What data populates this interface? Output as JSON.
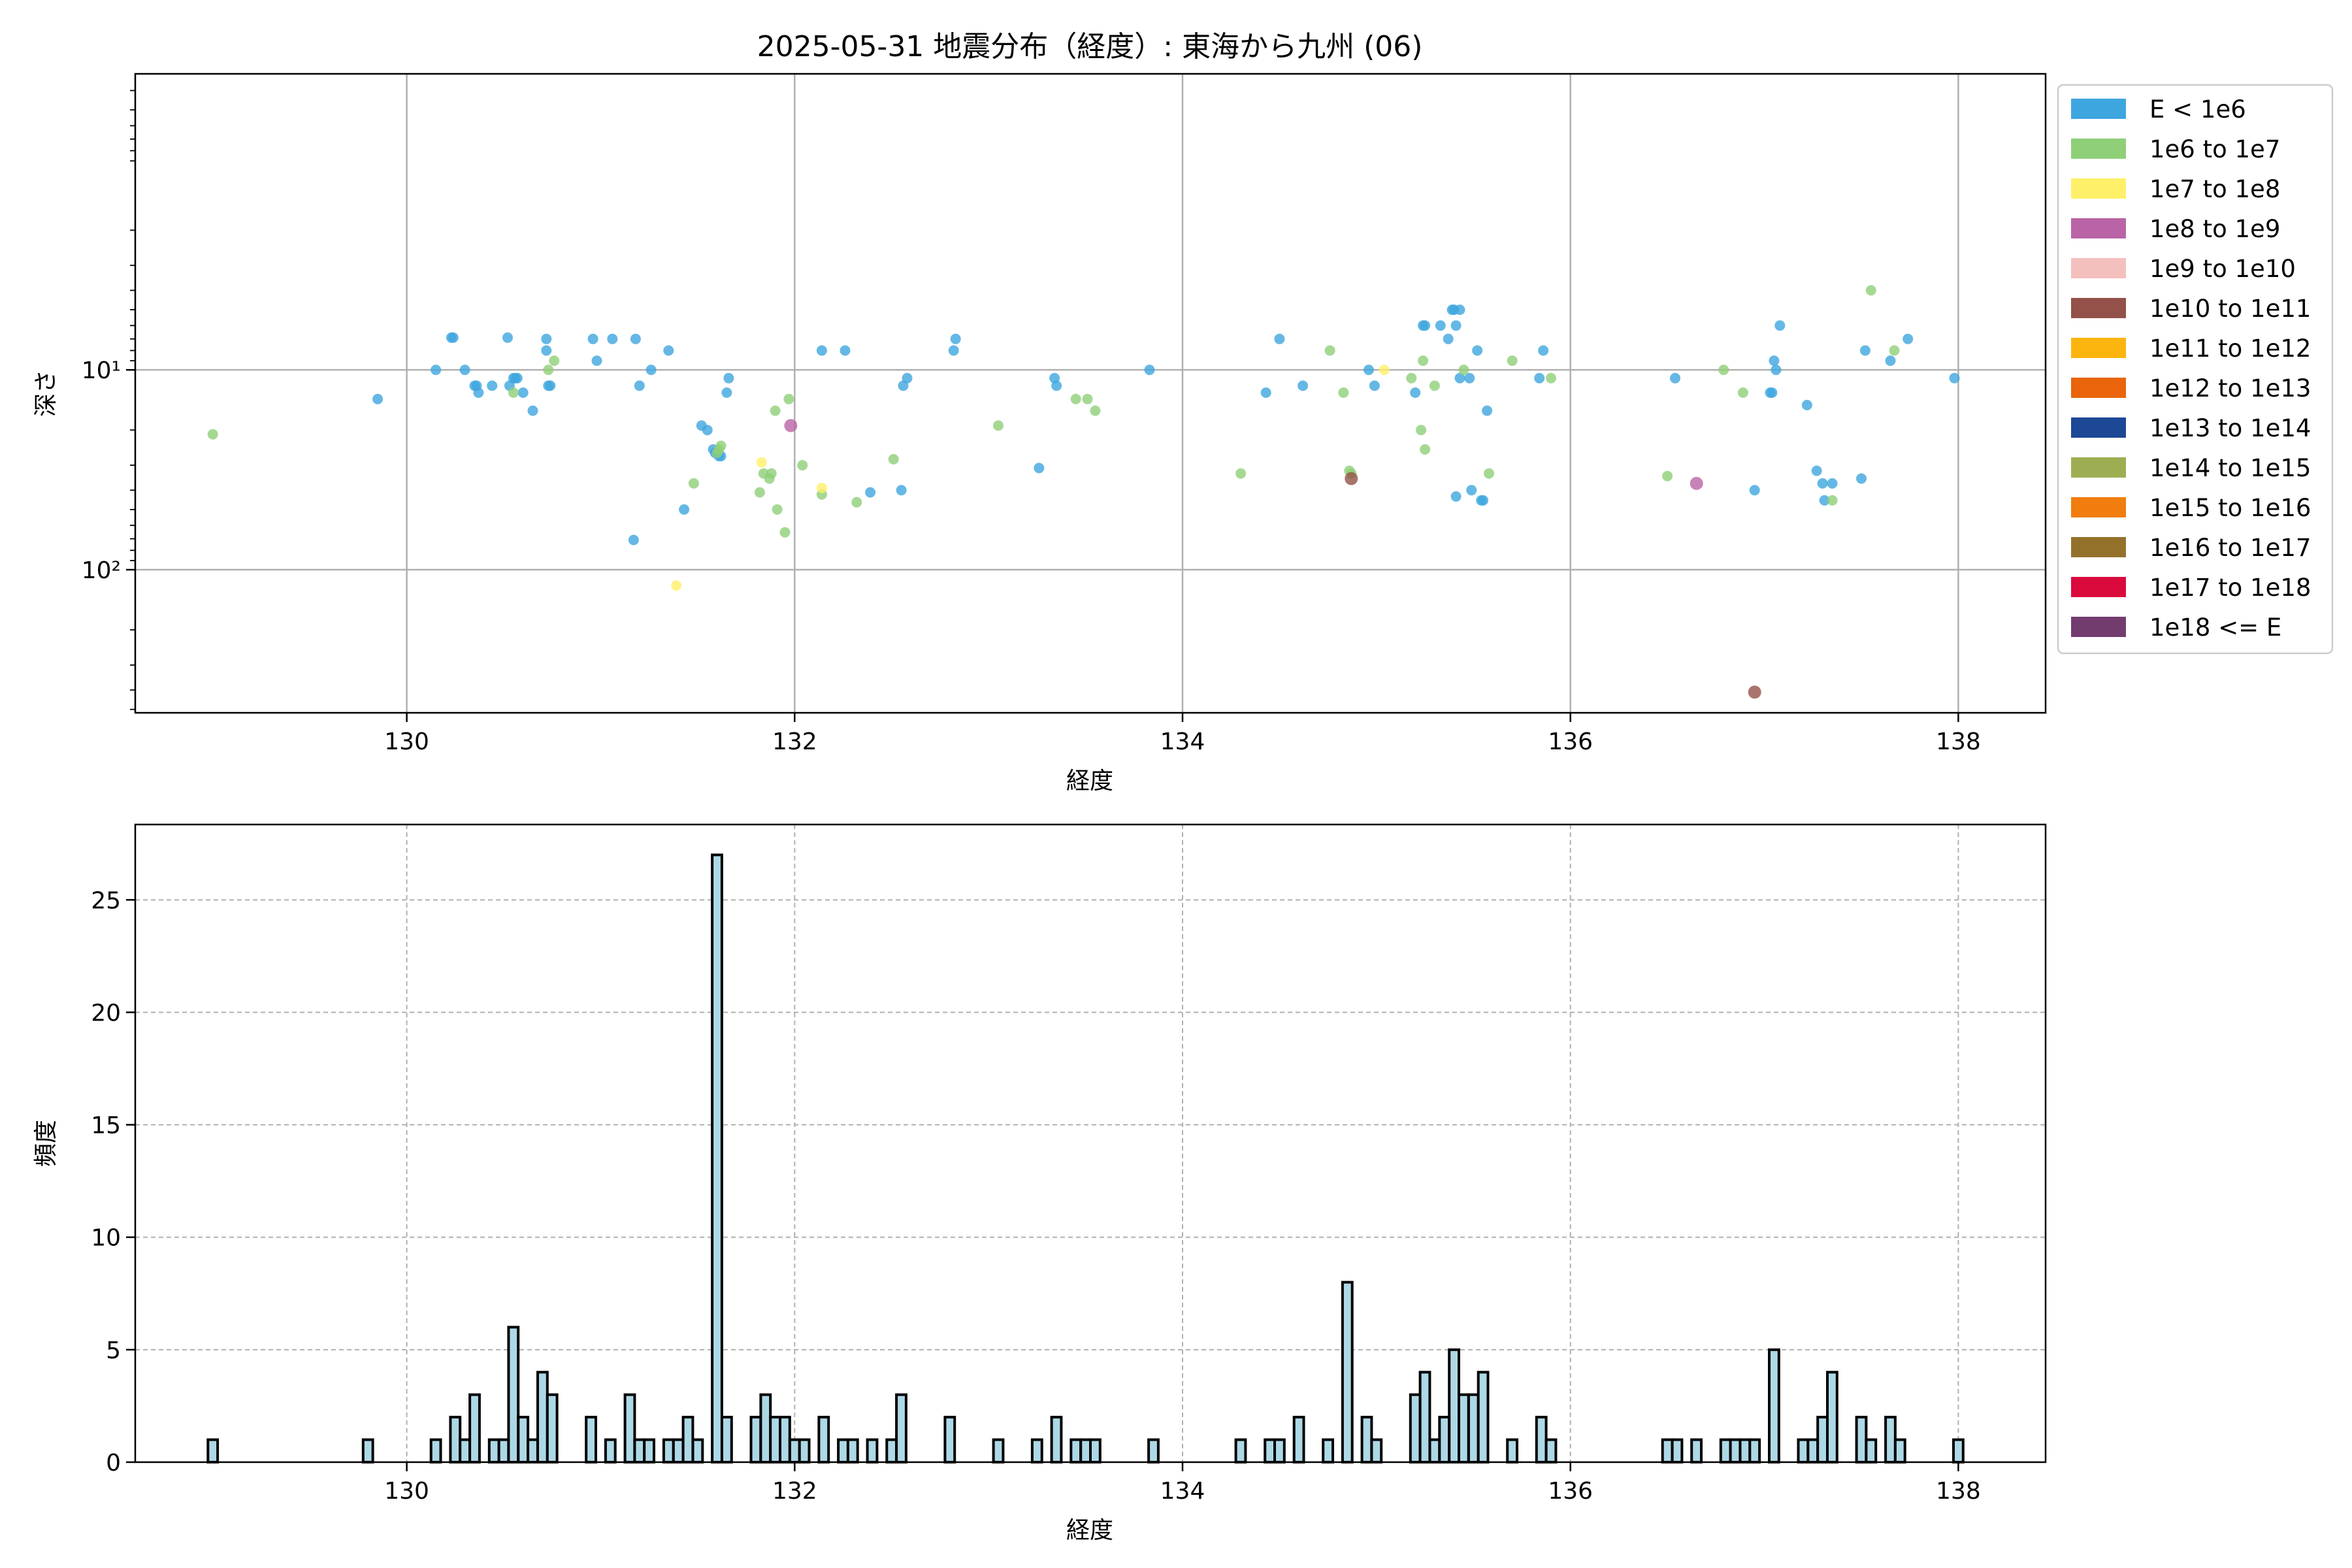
{
  "title": "2025-05-31 地震分布（経度）: 東海から九州 (06)",
  "scatter_axes": {
    "xlabel": "経度",
    "ylabel": "深さ",
    "xlim": [
      128.6,
      138.45
    ],
    "ylim_inverted_log": [
      0.33,
      520
    ],
    "xticks": [
      "130",
      "132",
      "134",
      "136",
      "138"
    ],
    "yticks": [
      {
        "value": 10,
        "label": "10¹"
      },
      {
        "value": 100,
        "label": "10²"
      }
    ]
  },
  "hist_axes": {
    "xlabel": "経度",
    "ylabel": "頻度",
    "xlim": [
      128.6,
      138.45
    ],
    "ylim": [
      0,
      28.35
    ],
    "xticks": [
      "130",
      "132",
      "134",
      "136",
      "138"
    ],
    "yticks": [
      "0",
      "5",
      "10",
      "15",
      "20",
      "25"
    ]
  },
  "legend": [
    {
      "label": "E < 1e6",
      "color": "#3ea6de"
    },
    {
      "label": "1e6 to 1e7",
      "color": "#8fcf78"
    },
    {
      "label": "1e7 to 1e8",
      "color": "#fff06a"
    },
    {
      "label": "1e8 to 1e9",
      "color": "#b964a6"
    },
    {
      "label": "1e9 to 1e10",
      "color": "#f4c0bd"
    },
    {
      "label": "1e10 to 1e11",
      "color": "#935149"
    },
    {
      "label": "1e11 to 1e12",
      "color": "#fcb40e"
    },
    {
      "label": "1e12 to 1e13",
      "color": "#e9640b"
    },
    {
      "label": "1e13 to 1e14",
      "color": "#1c4896"
    },
    {
      "label": "1e14 to 1e15",
      "color": "#9dae52"
    },
    {
      "label": "1e15 to 1e16",
      "color": "#f07d0e"
    },
    {
      "label": "1e16 to 1e17",
      "color": "#94712a"
    },
    {
      "label": "1e17 to 1e18",
      "color": "#db0a3c"
    },
    {
      "label": "1e18 <= E",
      "color": "#733c6f"
    }
  ],
  "chart_data": [
    {
      "type": "scatter",
      "xlabel": "経度",
      "ylabel": "深さ",
      "xlim": [
        128.6,
        138.45
      ],
      "yscale": "log",
      "yaxis_inverted": true,
      "grid": true,
      "legend_position": "outside-right",
      "series": [
        {
          "name": "E < 1e6",
          "color": "#3ea6de",
          "points": [
            [
              129.85,
              14
            ],
            [
              130.15,
              10
            ],
            [
              130.23,
              6.9
            ],
            [
              130.24,
              6.9
            ],
            [
              130.3,
              10
            ],
            [
              130.35,
              12
            ],
            [
              130.36,
              12
            ],
            [
              130.37,
              13
            ],
            [
              130.44,
              12
            ],
            [
              130.52,
              6.9
            ],
            [
              130.53,
              12
            ],
            [
              130.55,
              11
            ],
            [
              130.56,
              11
            ],
            [
              130.57,
              11
            ],
            [
              130.6,
              13
            ],
            [
              130.65,
              16
            ],
            [
              130.72,
              7
            ],
            [
              130.72,
              8
            ],
            [
              130.73,
              12
            ],
            [
              130.74,
              12
            ],
            [
              130.96,
              7
            ],
            [
              130.98,
              9
            ],
            [
              131.06,
              7
            ],
            [
              131.17,
              71
            ],
            [
              131.18,
              7
            ],
            [
              131.2,
              12
            ],
            [
              131.26,
              10
            ],
            [
              131.35,
              8
            ],
            [
              131.43,
              50
            ],
            [
              131.52,
              19
            ],
            [
              131.55,
              20
            ],
            [
              131.58,
              25
            ],
            [
              131.59,
              26
            ],
            [
              131.6,
              26
            ],
            [
              131.61,
              27
            ],
            [
              131.62,
              27
            ],
            [
              131.65,
              13
            ],
            [
              131.66,
              11
            ],
            [
              132.14,
              8
            ],
            [
              132.26,
              8
            ],
            [
              132.39,
              41
            ],
            [
              132.55,
              40
            ],
            [
              132.56,
              12
            ],
            [
              132.58,
              11
            ],
            [
              132.82,
              8
            ],
            [
              132.83,
              7
            ],
            [
              133.26,
              31
            ],
            [
              133.34,
              11
            ],
            [
              133.35,
              12
            ],
            [
              133.83,
              10
            ],
            [
              134.43,
              13
            ],
            [
              134.5,
              7
            ],
            [
              134.62,
              12
            ],
            [
              134.96,
              10
            ],
            [
              134.99,
              12
            ],
            [
              135.2,
              13
            ],
            [
              135.24,
              6
            ],
            [
              135.25,
              6
            ],
            [
              135.33,
              6
            ],
            [
              135.37,
              7
            ],
            [
              135.39,
              5
            ],
            [
              135.4,
              5
            ],
            [
              135.41,
              6
            ],
            [
              135.43,
              5
            ],
            [
              135.41,
              43
            ],
            [
              135.43,
              11
            ],
            [
              135.48,
              11
            ],
            [
              135.49,
              40
            ],
            [
              135.52,
              8
            ],
            [
              135.54,
              45
            ],
            [
              135.55,
              45
            ],
            [
              135.57,
              16
            ],
            [
              135.84,
              11
            ],
            [
              135.86,
              8
            ],
            [
              136.54,
              11
            ],
            [
              136.95,
              40
            ],
            [
              137.03,
              13
            ],
            [
              137.04,
              13
            ],
            [
              137.05,
              9
            ],
            [
              137.06,
              10
            ],
            [
              137.08,
              6
            ],
            [
              137.22,
              15
            ],
            [
              137.27,
              32
            ],
            [
              137.3,
              37
            ],
            [
              137.31,
              45
            ],
            [
              137.35,
              37
            ],
            [
              137.5,
              35
            ],
            [
              137.52,
              8
            ],
            [
              137.65,
              9
            ],
            [
              137.74,
              7
            ],
            [
              137.98,
              11
            ]
          ]
        },
        {
          "name": "1e6 to 1e7",
          "color": "#8fcf78",
          "points": [
            [
              129.0,
              21
            ],
            [
              130.55,
              13
            ],
            [
              130.73,
              10
            ],
            [
              130.76,
              9
            ],
            [
              131.48,
              37
            ],
            [
              131.6,
              26
            ],
            [
              131.61,
              25
            ],
            [
              131.62,
              24
            ],
            [
              131.82,
              41
            ],
            [
              131.84,
              33
            ],
            [
              131.87,
              35
            ],
            [
              131.88,
              33
            ],
            [
              131.9,
              16
            ],
            [
              131.91,
              50
            ],
            [
              131.95,
              65
            ],
            [
              131.97,
              14
            ],
            [
              132.04,
              30
            ],
            [
              132.14,
              42
            ],
            [
              132.32,
              46
            ],
            [
              132.51,
              28
            ],
            [
              133.05,
              19
            ],
            [
              133.45,
              14
            ],
            [
              133.51,
              14
            ],
            [
              133.55,
              16
            ],
            [
              134.3,
              33
            ],
            [
              134.76,
              8
            ],
            [
              134.83,
              13
            ],
            [
              134.86,
              32
            ],
            [
              134.87,
              33
            ],
            [
              135.18,
              11
            ],
            [
              135.23,
              20
            ],
            [
              135.24,
              9
            ],
            [
              135.25,
              25
            ],
            [
              135.3,
              12
            ],
            [
              135.45,
              10
            ],
            [
              135.58,
              33
            ],
            [
              135.7,
              9
            ],
            [
              135.9,
              11
            ],
            [
              136.5,
              34
            ],
            [
              136.79,
              10
            ],
            [
              136.89,
              13
            ],
            [
              137.35,
              45
            ],
            [
              137.55,
              4
            ],
            [
              137.67,
              8
            ]
          ]
        },
        {
          "name": "1e7 to 1e8",
          "color": "#fff06a",
          "points": [
            [
              131.39,
              120
            ],
            [
              131.83,
              29
            ],
            [
              132.14,
              39
            ],
            [
              135.04,
              10
            ]
          ]
        },
        {
          "name": "1e8 to 1e9",
          "color": "#b964a6",
          "points": [
            [
              131.98,
              19
            ],
            [
              136.65,
              37
            ]
          ]
        },
        {
          "name": "1e10 to 1e11",
          "color": "#935149",
          "points": [
            [
              134.87,
              35
            ],
            [
              136.95,
              410
            ]
          ]
        }
      ]
    },
    {
      "type": "bar",
      "title": "",
      "xlabel": "経度",
      "ylabel": "頻度",
      "xlim": [
        128.6,
        138.45
      ],
      "ylim": [
        0,
        28.35
      ],
      "grid": true,
      "bin_width": 0.05,
      "series": [
        {
          "values": [
            [
              129.0,
              1
            ],
            [
              129.8,
              1
            ],
            [
              130.15,
              1
            ],
            [
              130.25,
              2
            ],
            [
              130.3,
              1
            ],
            [
              130.35,
              3
            ],
            [
              130.45,
              1
            ],
            [
              130.5,
              1
            ],
            [
              130.55,
              6
            ],
            [
              130.6,
              2
            ],
            [
              130.65,
              1
            ],
            [
              130.7,
              4
            ],
            [
              130.75,
              3
            ],
            [
              130.95,
              2
            ],
            [
              131.05,
              1
            ],
            [
              131.15,
              3
            ],
            [
              131.2,
              1
            ],
            [
              131.25,
              1
            ],
            [
              131.35,
              1
            ],
            [
              131.4,
              1
            ],
            [
              131.45,
              2
            ],
            [
              131.5,
              1
            ],
            [
              131.6,
              27
            ],
            [
              131.65,
              2
            ],
            [
              131.8,
              2
            ],
            [
              131.85,
              3
            ],
            [
              131.9,
              2
            ],
            [
              131.95,
              2
            ],
            [
              132.0,
              1
            ],
            [
              132.05,
              1
            ],
            [
              132.15,
              2
            ],
            [
              132.25,
              1
            ],
            [
              132.3,
              1
            ],
            [
              132.4,
              1
            ],
            [
              132.5,
              1
            ],
            [
              132.55,
              3
            ],
            [
              132.8,
              2
            ],
            [
              133.05,
              1
            ],
            [
              133.25,
              1
            ],
            [
              133.35,
              2
            ],
            [
              133.45,
              1
            ],
            [
              133.5,
              1
            ],
            [
              133.55,
              1
            ],
            [
              133.85,
              1
            ],
            [
              134.3,
              1
            ],
            [
              134.45,
              1
            ],
            [
              134.5,
              1
            ],
            [
              134.6,
              2
            ],
            [
              134.75,
              1
            ],
            [
              134.85,
              8
            ],
            [
              134.95,
              2
            ],
            [
              135.0,
              1
            ],
            [
              135.2,
              3
            ],
            [
              135.25,
              4
            ],
            [
              135.3,
              1
            ],
            [
              135.35,
              2
            ],
            [
              135.4,
              5
            ],
            [
              135.45,
              3
            ],
            [
              135.5,
              3
            ],
            [
              135.55,
              4
            ],
            [
              135.7,
              1
            ],
            [
              135.85,
              2
            ],
            [
              135.9,
              1
            ],
            [
              136.5,
              1
            ],
            [
              136.55,
              1
            ],
            [
              136.65,
              1
            ],
            [
              136.8,
              1
            ],
            [
              136.85,
              1
            ],
            [
              136.9,
              1
            ],
            [
              136.95,
              1
            ],
            [
              137.05,
              5
            ],
            [
              137.2,
              1
            ],
            [
              137.25,
              1
            ],
            [
              137.3,
              2
            ],
            [
              137.35,
              4
            ],
            [
              137.5,
              2
            ],
            [
              137.55,
              1
            ],
            [
              137.65,
              2
            ],
            [
              137.7,
              1
            ],
            [
              138.0,
              1
            ]
          ]
        }
      ]
    }
  ]
}
